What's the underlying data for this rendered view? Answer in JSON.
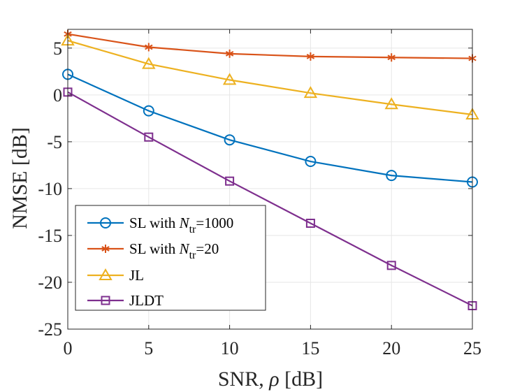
{
  "chart_data": {
    "type": "line",
    "title": "",
    "xlabel": "SNR, ρ [dB]",
    "xlabel_parts": {
      "prefix": "SNR, ",
      "symbol": "ρ",
      "suffix": " [dB]"
    },
    "ylabel": "NMSE [dB]",
    "x": [
      0,
      5,
      10,
      15,
      20,
      25
    ],
    "xlim": [
      0,
      25
    ],
    "ylim": [
      -25,
      7
    ],
    "x_ticks": [
      0,
      5,
      10,
      15,
      20,
      25
    ],
    "y_ticks": [
      5,
      0,
      -5,
      -10,
      -15,
      -20,
      -25
    ],
    "x_tick_labels": [
      "0",
      "5",
      "10",
      "15",
      "20",
      "25"
    ],
    "y_tick_labels": [
      "5",
      "0",
      "-5",
      "-10",
      "-15",
      "-20",
      "-25"
    ],
    "grid": true,
    "legend_position": "bottom-left",
    "series": [
      {
        "name": "SL with N_tr=1000",
        "legend": {
          "prefix": "SL with ",
          "var": "N",
          "sub": "tr",
          "suffix": "=1000"
        },
        "values": [
          2.2,
          -1.7,
          -4.8,
          -7.1,
          -8.6,
          -9.3
        ],
        "color": "#0072BD",
        "marker": "circle"
      },
      {
        "name": "SL with N_tr=20",
        "legend": {
          "prefix": "SL with ",
          "var": "N",
          "sub": "tr",
          "suffix": "=20"
        },
        "values": [
          6.5,
          5.1,
          4.4,
          4.1,
          4.0,
          3.9
        ],
        "color": "#D95319",
        "marker": "asterisk"
      },
      {
        "name": "JL",
        "legend": {
          "prefix": "JL",
          "var": "",
          "sub": "",
          "suffix": ""
        },
        "values": [
          5.8,
          3.3,
          1.6,
          0.2,
          -1.0,
          -2.1
        ],
        "color": "#EDB120",
        "marker": "triangle"
      },
      {
        "name": "JLDT",
        "legend": {
          "prefix": "JLDT",
          "var": "",
          "sub": "",
          "suffix": ""
        },
        "values": [
          0.3,
          -4.5,
          -9.2,
          -13.7,
          -18.2,
          -22.5
        ],
        "color": "#7E2F8E",
        "marker": "square"
      }
    ]
  }
}
